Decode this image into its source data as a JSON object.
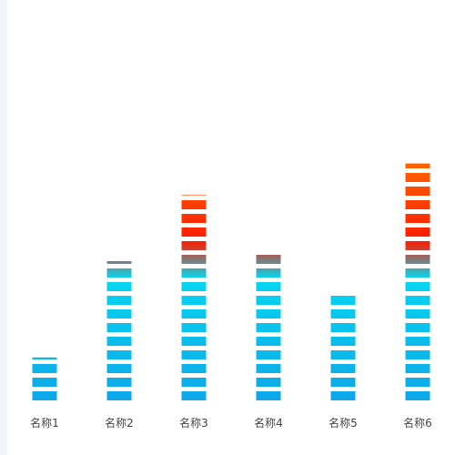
{
  "chart_data": {
    "type": "bar",
    "style": "segmented-pictorial-bar",
    "categories": [
      "名称1",
      "名称2",
      "名称3",
      "名称4",
      "名称5",
      "名称6"
    ],
    "values": [
      3.6,
      10.9,
      15.9,
      11.6,
      8.6,
      18.3
    ],
    "ylim": [
      0,
      20
    ],
    "grid": false,
    "legend": "none",
    "color_stops": {
      "bottom": "#0ea5e9",
      "middle": "#06d6f0",
      "upper": "#ff1a00",
      "top": "#ff7a00"
    }
  }
}
